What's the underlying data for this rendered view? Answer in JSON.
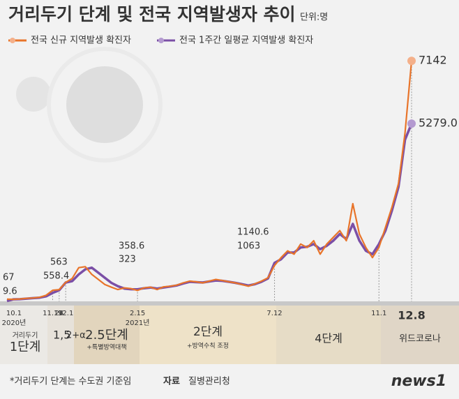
{
  "chart_data": {
    "type": "line",
    "title": "거리두기 단계 및 전국 지역발생자 추이",
    "unit": "단위:명",
    "categories": [
      "10.1",
      null,
      null,
      null,
      null,
      null,
      null,
      "11.19",
      "24",
      "12.1",
      null,
      null,
      null,
      null,
      null,
      null,
      null,
      null,
      null,
      null,
      "2.15",
      null,
      null,
      null,
      null,
      null,
      null,
      null,
      null,
      null,
      null,
      null,
      null,
      null,
      null,
      null,
      null,
      null,
      null,
      null,
      null,
      "7.12",
      null,
      null,
      null,
      null,
      null,
      null,
      null,
      null,
      null,
      null,
      null,
      null,
      null,
      null,
      null,
      "11.1",
      null,
      null,
      null,
      null,
      "12.8"
    ],
    "year_labels": [
      "2020년",
      null,
      null,
      null,
      null,
      null,
      null,
      null,
      null,
      null,
      null,
      null,
      null,
      null,
      null,
      null,
      null,
      null,
      null,
      null,
      "2021년",
      null,
      null,
      null,
      null,
      null,
      null,
      null,
      null,
      null,
      null,
      null,
      null,
      null,
      null,
      null,
      null,
      null,
      null,
      null,
      null,
      null,
      null,
      null,
      null,
      null,
      null,
      null,
      null,
      null,
      null,
      null,
      null,
      null,
      null,
      null,
      null,
      null,
      null,
      null,
      null,
      null,
      null
    ],
    "ylim": [
      0,
      7500
    ],
    "series": [
      {
        "name": "전국 1주간 일평균 지역발생 확진자",
        "color": "#7b4fa6",
        "values": [
          9.6,
          60,
          65,
          80,
          95,
          110,
          150,
          250,
          330,
          558.4,
          600,
          800,
          950,
          1000,
          850,
          700,
          550,
          450,
          380,
          360,
          358.6,
          390,
          410,
          380,
          410,
          440,
          470,
          530,
          580,
          570,
          560,
          590,
          620,
          610,
          580,
          550,
          510,
          470,
          510,
          580,
          680,
          1140.6,
          1250,
          1450,
          1450,
          1600,
          1620,
          1700,
          1550,
          1650,
          1800,
          2000,
          1850,
          2300,
          1800,
          1500,
          1400,
          1700,
          2100,
          2700,
          3400,
          4800,
          5279.0
        ],
        "value_labels": [
          "9.6",
          null,
          null,
          null,
          null,
          null,
          null,
          null,
          null,
          "558.4",
          null,
          null,
          null,
          null,
          null,
          null,
          null,
          null,
          null,
          null,
          "358.6",
          null,
          null,
          null,
          null,
          null,
          null,
          null,
          null,
          null,
          null,
          null,
          null,
          null,
          null,
          null,
          null,
          null,
          null,
          null,
          null,
          "1140.6",
          null,
          null,
          null,
          null,
          null,
          null,
          null,
          null,
          null,
          null,
          null,
          null,
          null,
          null,
          null,
          null,
          null,
          null,
          null,
          null,
          "5279.0"
        ]
      },
      {
        "name": "전국 신규 지역발생 확진자",
        "color": "#e8742a",
        "values": [
          67,
          60,
          70,
          90,
          100,
          120,
          180,
          330,
          349,
          563,
          680,
          1000,
          1030,
          800,
          650,
          500,
          420,
          350,
          400,
          380,
          323,
          400,
          420,
          350,
          430,
          450,
          480,
          550,
          600,
          580,
          550,
          600,
          650,
          620,
          580,
          550,
          500,
          450,
          520,
          600,
          700,
          1063,
          1300,
          1500,
          1400,
          1700,
          1600,
          1800,
          1400,
          1700,
          1900,
          2100,
          1800,
          2900,
          2000,
          1600,
          1300,
          1600,
          2200,
          2800,
          3500,
          5000,
          7142
        ],
        "value_labels": [
          "67",
          null,
          null,
          null,
          null,
          null,
          null,
          null,
          null,
          "563",
          null,
          null,
          null,
          null,
          null,
          null,
          null,
          null,
          null,
          null,
          "323",
          null,
          null,
          null,
          null,
          null,
          null,
          null,
          null,
          null,
          null,
          null,
          null,
          null,
          null,
          null,
          null,
          null,
          null,
          null,
          null,
          "1063",
          null,
          null,
          null,
          null,
          null,
          null,
          null,
          null,
          null,
          null,
          null,
          null,
          null,
          null,
          null,
          null,
          null,
          null,
          null,
          null,
          "7142"
        ]
      }
    ],
    "legend": [
      "전국 신규 지역발생 확진자",
      "전국 1주간 일평균 지역발생 확진자"
    ],
    "phases": [
      {
        "label": "1단계",
        "sublabel": "거리두기"
      },
      {
        "label": "1,5",
        "sublabel": "2+α"
      },
      {
        "label": "2.5단계",
        "sublabel": "+특별방역대책"
      },
      {
        "label": "2단계",
        "sublabel": "+방역수칙 조정"
      },
      {
        "label": "4단계"
      },
      {
        "label": "위드코로나"
      }
    ],
    "footnote": "*거리두기 단계는 수도권 기준임",
    "source_label": "자료",
    "source": "질병관리청",
    "logo": "news1"
  }
}
